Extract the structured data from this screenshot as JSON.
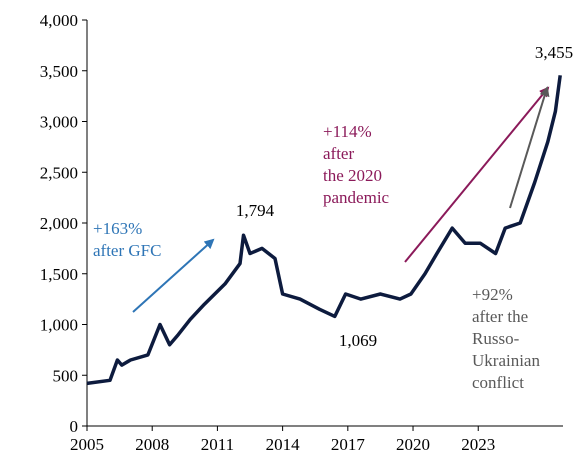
{
  "chart_data": {
    "type": "line",
    "color": "#0d1b3e",
    "x": [
      2005.0,
      2006.06,
      2006.4,
      2006.6,
      2007.0,
      2007.8,
      2008.36,
      2008.8,
      2009.2,
      2009.75,
      2010.4,
      2011.35,
      2012.04,
      2012.2,
      2012.5,
      2013.05,
      2013.65,
      2014.0,
      2014.8,
      2015.7,
      2016.4,
      2016.9,
      2017.6,
      2018.5,
      2019.4,
      2019.9,
      2020.55,
      2021.1,
      2021.8,
      2022.4,
      2023.1,
      2023.8,
      2024.24,
      2024.93,
      2025.6,
      2026.2,
      2026.55,
      2026.77
    ],
    "values": [
      420,
      450,
      650,
      600,
      650,
      700,
      1000,
      800,
      900,
      1050,
      1200,
      1400,
      1600,
      1880,
      1700,
      1750,
      1650,
      1300,
      1250,
      1150,
      1080,
      1300,
      1250,
      1300,
      1250,
      1300,
      1500,
      1700,
      1950,
      1800,
      1800,
      1700,
      1950,
      2000,
      2400,
      2800,
      3100,
      3455
    ],
    "xlim": [
      2005,
      2026.9
    ],
    "ylim": [
      0,
      4000
    ],
    "xticks": [
      2005,
      2008,
      2011,
      2014,
      2017,
      2020,
      2023
    ],
    "yticks": [
      0,
      500,
      {
        "value": 1000,
        "label": "1,000"
      },
      {
        "value": 1500,
        "label": "1,500"
      },
      {
        "value": 2000,
        "label": "2,000"
      },
      {
        "value": 2500,
        "label": "2,500"
      },
      {
        "value": 3000,
        "label": "3,000"
      },
      {
        "value": 3500,
        "label": "3,500"
      },
      {
        "value": 4000,
        "label": "4,000"
      }
    ],
    "annotations": [
      {
        "lines": [
          "1,794"
        ],
        "color": "#000000"
      },
      {
        "lines": [
          "1,069"
        ],
        "color": "#000000"
      },
      {
        "lines": [
          "3,455"
        ],
        "color": "#000000"
      },
      {
        "lines": [
          "+163%",
          "after GFC"
        ],
        "color": "#2e75b6"
      },
      {
        "lines": [
          "+114%",
          "after",
          "the 2020",
          "pandemic"
        ],
        "color": "#8b1a5a"
      },
      {
        "lines": [
          "+92%",
          "after the",
          "Russo-",
          "Ukrainian",
          "conflict"
        ],
        "color": "#595959"
      }
    ]
  }
}
